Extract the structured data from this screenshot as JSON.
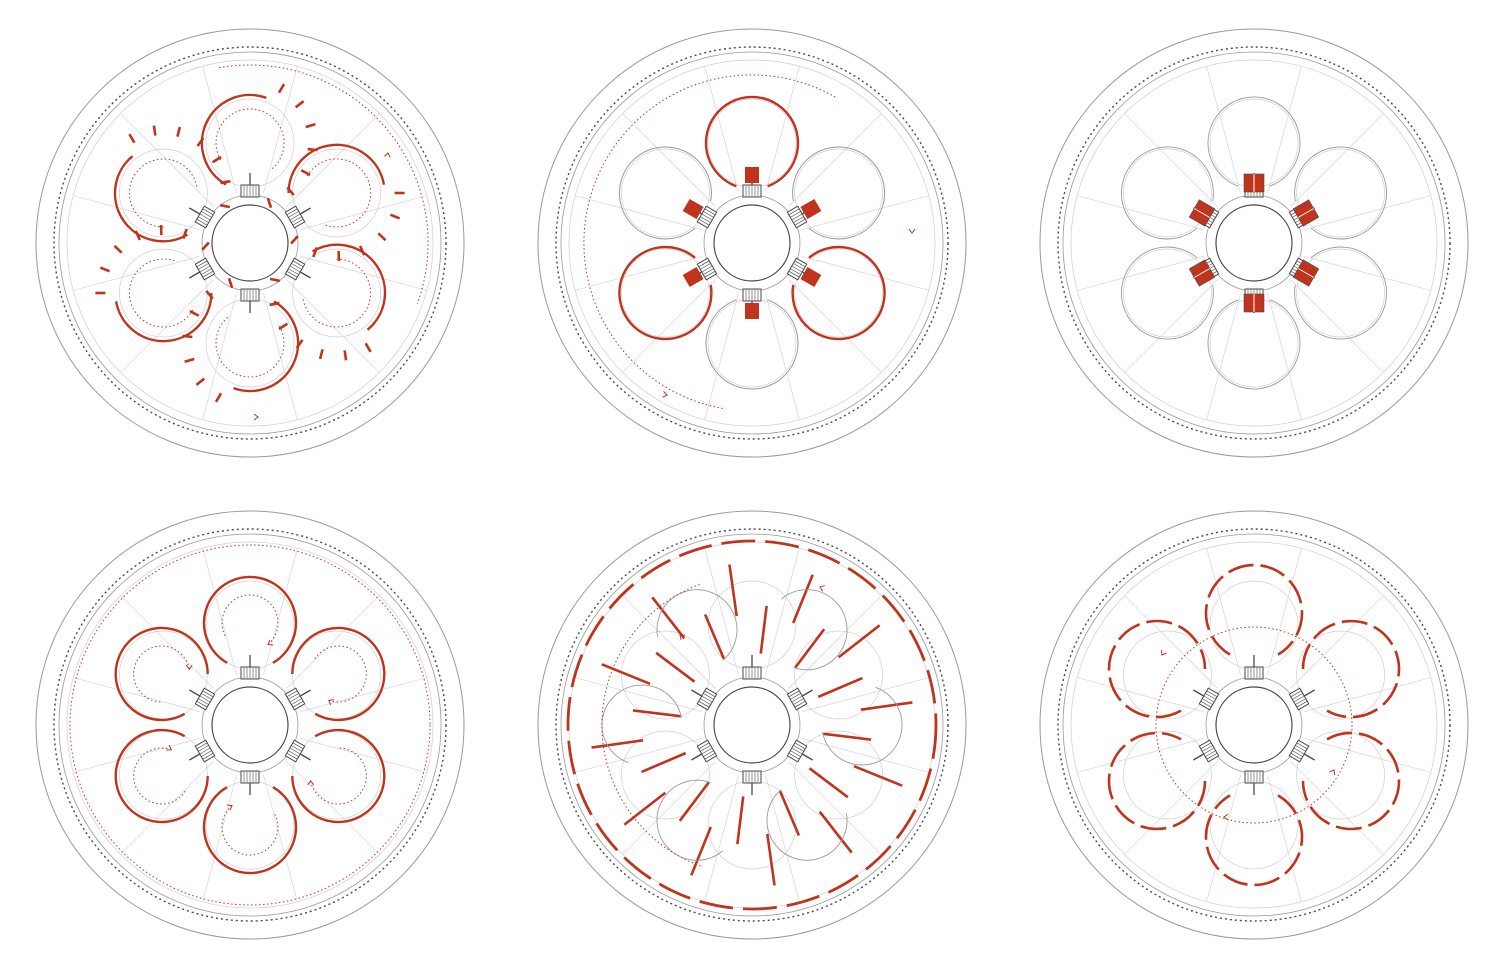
{
  "colors": {
    "background": "#ffffff",
    "accent": "#c0341d",
    "line": "#9a9a9a",
    "light_line": "#cfcfcf",
    "dark_line": "#4a4a4a"
  },
  "diagrams": [
    {
      "id": "layout-1",
      "pattern": "petal-arcs-dashed-ticks",
      "units": 6
    },
    {
      "id": "layout-2",
      "pattern": "alternating-loop-path",
      "units": 6
    },
    {
      "id": "layout-3",
      "pattern": "stair-blocks-only",
      "units": 6
    },
    {
      "id": "layout-4",
      "pattern": "spiral-petals",
      "units": 6
    },
    {
      "id": "layout-5",
      "pattern": "radial-walls-outer-ring",
      "units": 6
    },
    {
      "id": "layout-6",
      "pattern": "overlapping-dashed-petals",
      "units": 6
    }
  ]
}
